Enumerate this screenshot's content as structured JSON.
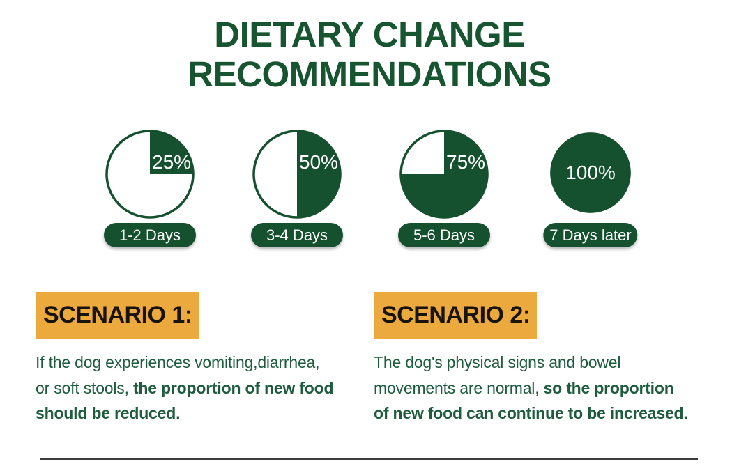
{
  "title": {
    "line1": "DIETARY CHANGE",
    "line2": "RECOMMENDATIONS"
  },
  "colors": {
    "green": "#15502F",
    "title_green": "#165530",
    "orange": "#ECA93D",
    "text_green": "#1E5C3D",
    "divider": "#3B3B3B",
    "percent_text": "#FFFFFF",
    "pill_text": "#FFFFFF",
    "header_text": "#17130E"
  },
  "pies": [
    {
      "value": 25,
      "percent_label": "25%",
      "day_label": "1-2 Days"
    },
    {
      "value": 50,
      "percent_label": "50%",
      "day_label": "3-4 Days"
    },
    {
      "value": 75,
      "percent_label": "75%",
      "day_label": "5-6 Days"
    },
    {
      "value": 100,
      "percent_label": "100%",
      "day_label": "7 Days later"
    }
  ],
  "scenarios": [
    {
      "header": "SCENARIO 1:",
      "lines": [
        [
          {
            "t": "If the dog experiences vomiting,diarrhea,",
            "bold": false
          }
        ],
        [
          {
            "t": "or soft stools, ",
            "bold": false
          },
          {
            "t": "the proportion of new food",
            "bold": true
          }
        ],
        [
          {
            "t": "should be reduced.",
            "bold": true
          }
        ]
      ]
    },
    {
      "header": "SCENARIO 2:",
      "lines": [
        [
          {
            "t": "The dog's physical signs and bowel",
            "bold": false
          }
        ],
        [
          {
            "t": "movements are normal, ",
            "bold": false
          },
          {
            "t": "so the proportion",
            "bold": true
          }
        ],
        [
          {
            "t": "of new food can continue to be increased.",
            "bold": true
          }
        ]
      ]
    }
  ],
  "chart_data": {
    "type": "pie",
    "title": "Dietary change recommendations — proportion of new food over time",
    "series": [
      {
        "label": "1-2 Days",
        "value_pct": 25
      },
      {
        "label": "3-4 Days",
        "value_pct": 50
      },
      {
        "label": "5-6 Days",
        "value_pct": 75
      },
      {
        "label": "7 Days later",
        "value_pct": 100
      }
    ]
  }
}
